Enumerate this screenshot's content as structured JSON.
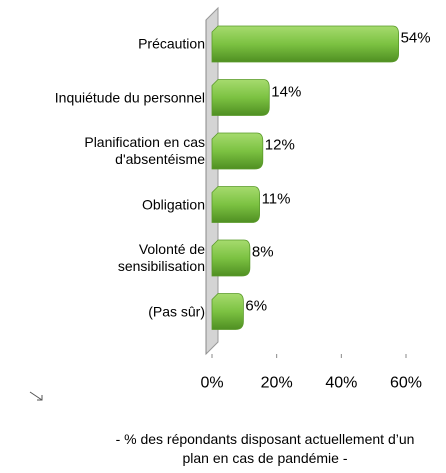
{
  "chart_data": {
    "type": "barh",
    "categories": [
      "Précaution",
      "Inquiétude du personnel",
      "Planification en cas\nd'absentéisme",
      "Obligation",
      "Volonté de\nsensibilisation",
      "(Pas sûr)"
    ],
    "values": [
      54,
      14,
      12,
      11,
      8,
      6
    ],
    "value_labels": [
      "54%",
      "14%",
      "12%",
      "11%",
      "8%",
      "6%"
    ],
    "color": "#7cc242",
    "xlim": [
      0,
      60
    ],
    "xticks": [
      {
        "value": 0,
        "label": "0%"
      },
      {
        "value": 20,
        "label": "20%"
      },
      {
        "value": 40,
        "label": "40%"
      },
      {
        "value": 60,
        "label": "60%"
      }
    ],
    "note": "- % des répondants disposant actuellement d’un\nplan en cas de pandémie -"
  }
}
